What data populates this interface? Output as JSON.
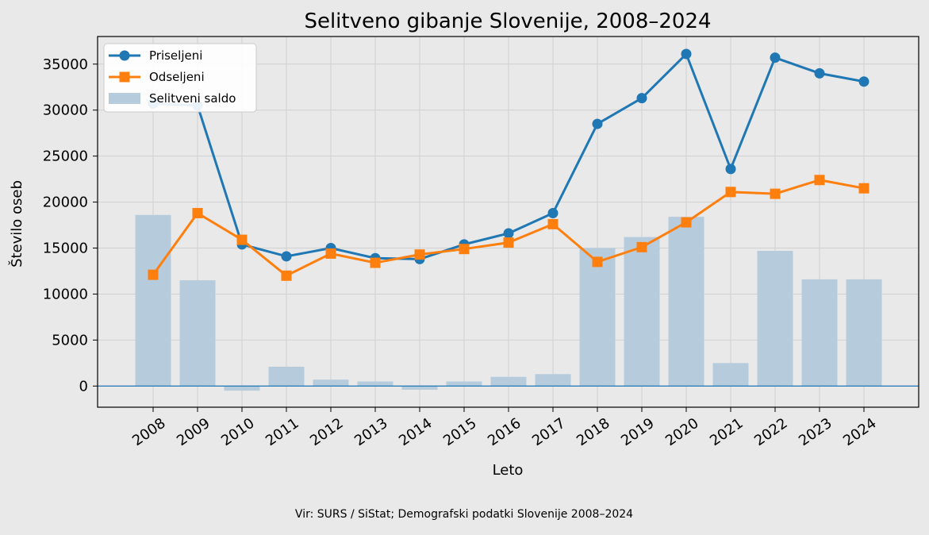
{
  "chart_data": {
    "type": "line",
    "title": "Selitveno gibanje Slovenije, 2008–2024",
    "xlabel": "Leto",
    "ylabel": "Število oseb",
    "categories": [
      "2008",
      "2009",
      "2010",
      "2011",
      "2012",
      "2013",
      "2014",
      "2015",
      "2016",
      "2017",
      "2018",
      "2019",
      "2020",
      "2021",
      "2022",
      "2023",
      "2024"
    ],
    "series": [
      {
        "name": "Priseljeni",
        "kind": "line",
        "marker": "circle",
        "color": "#1f77b4",
        "values": [
          30700,
          30500,
          15400,
          14100,
          15000,
          13900,
          13800,
          15400,
          16600,
          18800,
          28500,
          31300,
          36100,
          23600,
          35700,
          34000,
          33100
        ]
      },
      {
        "name": "Odseljeni",
        "kind": "line",
        "marker": "square",
        "color": "#ff7f0e",
        "values": [
          12100,
          18800,
          15900,
          12000,
          14400,
          13400,
          14300,
          14900,
          15600,
          17600,
          13500,
          15100,
          17800,
          21100,
          20900,
          22400,
          21500
        ]
      },
      {
        "name": "Selitveni saldo",
        "kind": "bar",
        "color": "#b6ccdc",
        "values": [
          18600,
          11500,
          -500,
          2100,
          700,
          500,
          -400,
          500,
          1000,
          1300,
          15000,
          16200,
          18400,
          2500,
          14700,
          11600,
          11600
        ]
      }
    ],
    "ylim": [
      -2300,
      38000
    ],
    "yticks": [
      0,
      5000,
      10000,
      15000,
      20000,
      25000,
      30000,
      35000
    ],
    "grid": true,
    "legend_position": "top-left",
    "source": "Vir: SURS / SiStat; Demografski podatki Slovenije 2008–2024"
  },
  "colors": {
    "background": "#e9e9e9",
    "grid": "#d0d0d0",
    "zero_line": "#1f77b4"
  }
}
